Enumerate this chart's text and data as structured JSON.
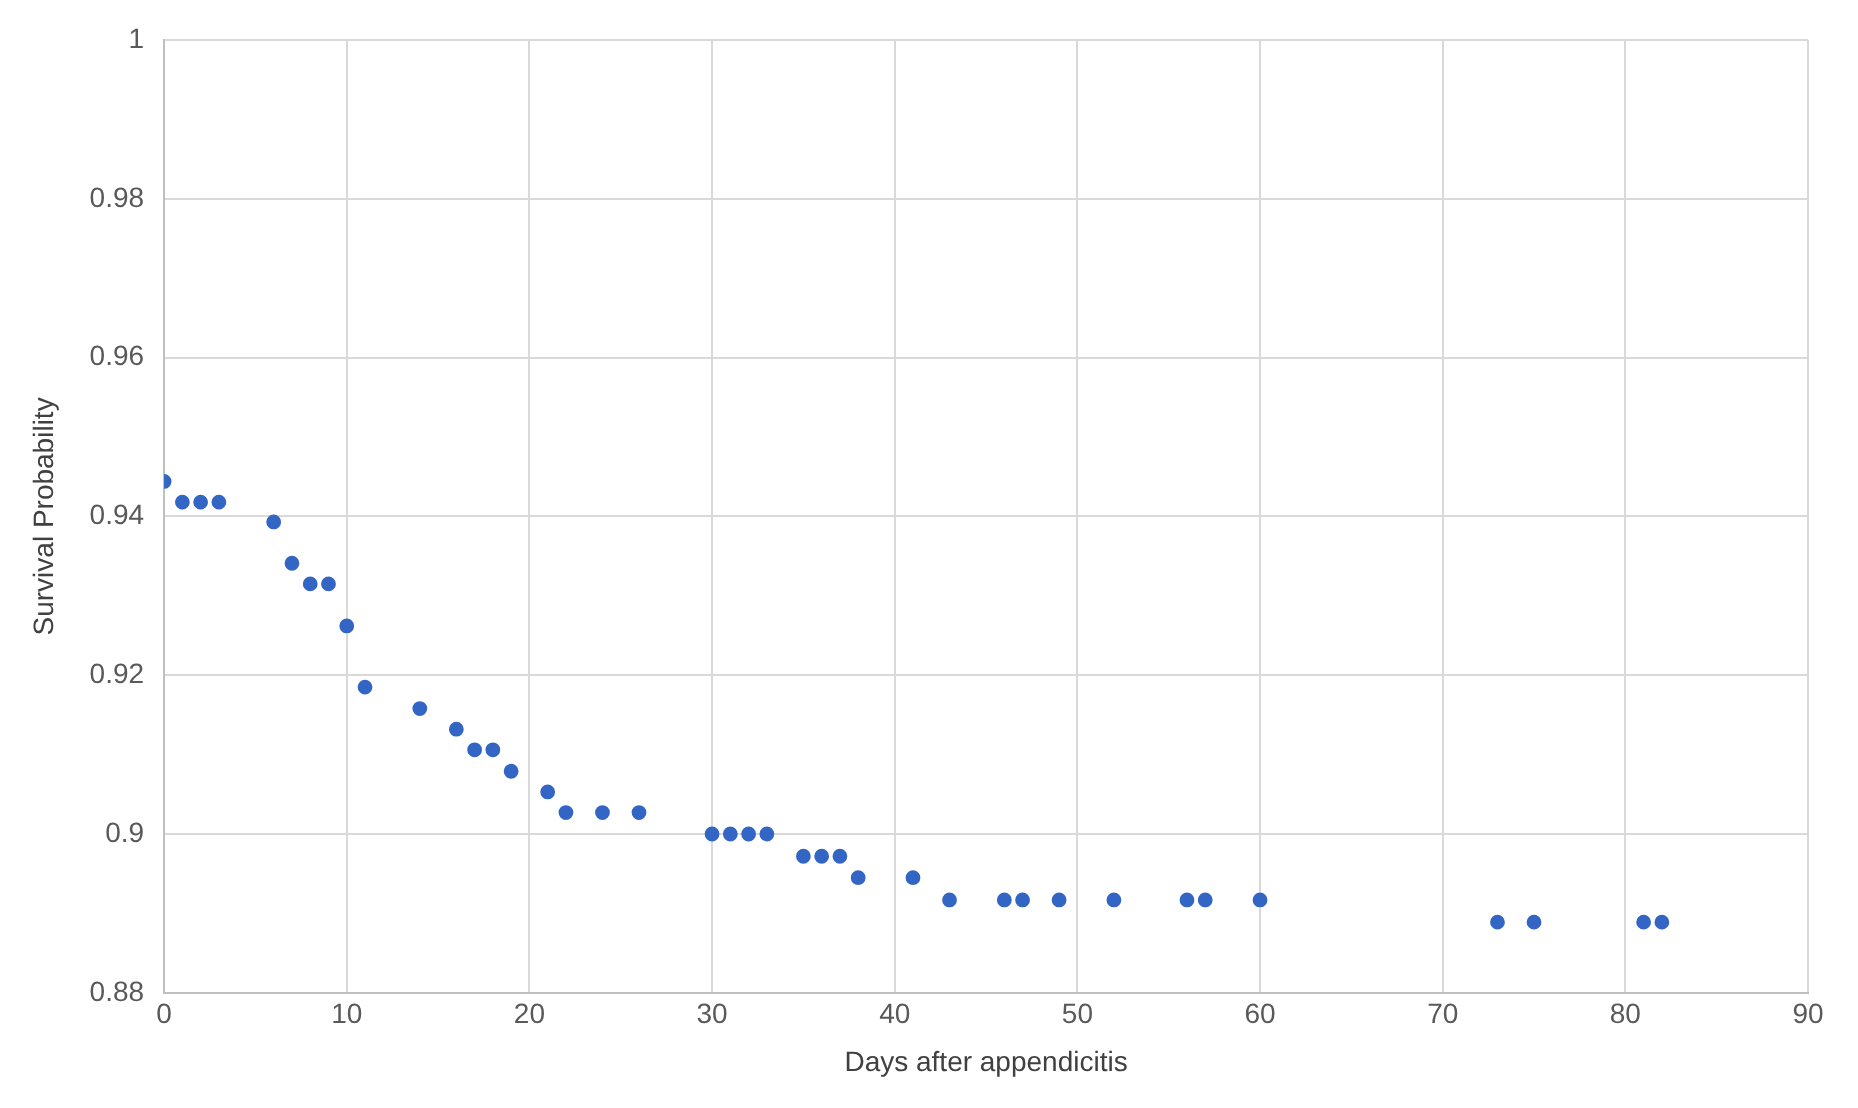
{
  "chart_data": {
    "type": "scatter",
    "xlabel": "Days after appendicitis",
    "ylabel": "Survival Probability",
    "x": [
      0,
      1,
      2,
      3,
      6,
      7,
      8,
      9,
      10,
      11,
      14,
      16,
      17,
      18,
      19,
      21,
      22,
      24,
      26,
      30,
      31,
      32,
      33,
      35,
      36,
      37,
      38,
      41,
      43,
      46,
      47,
      49,
      52,
      56,
      57,
      60,
      73,
      75,
      81,
      82
    ],
    "series": [
      {
        "color": "#3366c4",
        "values": [
          0.9444,
          0.9418,
          0.9418,
          0.9418,
          0.9393,
          0.9341,
          0.9315,
          0.9315,
          0.9262,
          0.9185,
          0.9158,
          0.9132,
          0.9106,
          0.9106,
          0.9079,
          0.9053,
          0.9027,
          0.9027,
          0.9027,
          0.9,
          0.9,
          0.9,
          0.9,
          0.8972,
          0.8972,
          0.8972,
          0.8945,
          0.8945,
          0.8917,
          0.8917,
          0.8917,
          0.8917,
          0.8917,
          0.8917,
          0.8917,
          0.8917,
          0.8889,
          0.8889,
          0.8889,
          0.8889
        ]
      }
    ],
    "xlim": [
      0,
      90
    ],
    "xticks": [
      0,
      10,
      20,
      30,
      40,
      50,
      60,
      70,
      80,
      90
    ],
    "ylim": [
      0.88,
      1
    ],
    "yticks": [
      0.88,
      0.9,
      0.92,
      0.94,
      0.96,
      0.98,
      1
    ],
    "grid": true,
    "marker": "circle",
    "legend": false
  }
}
